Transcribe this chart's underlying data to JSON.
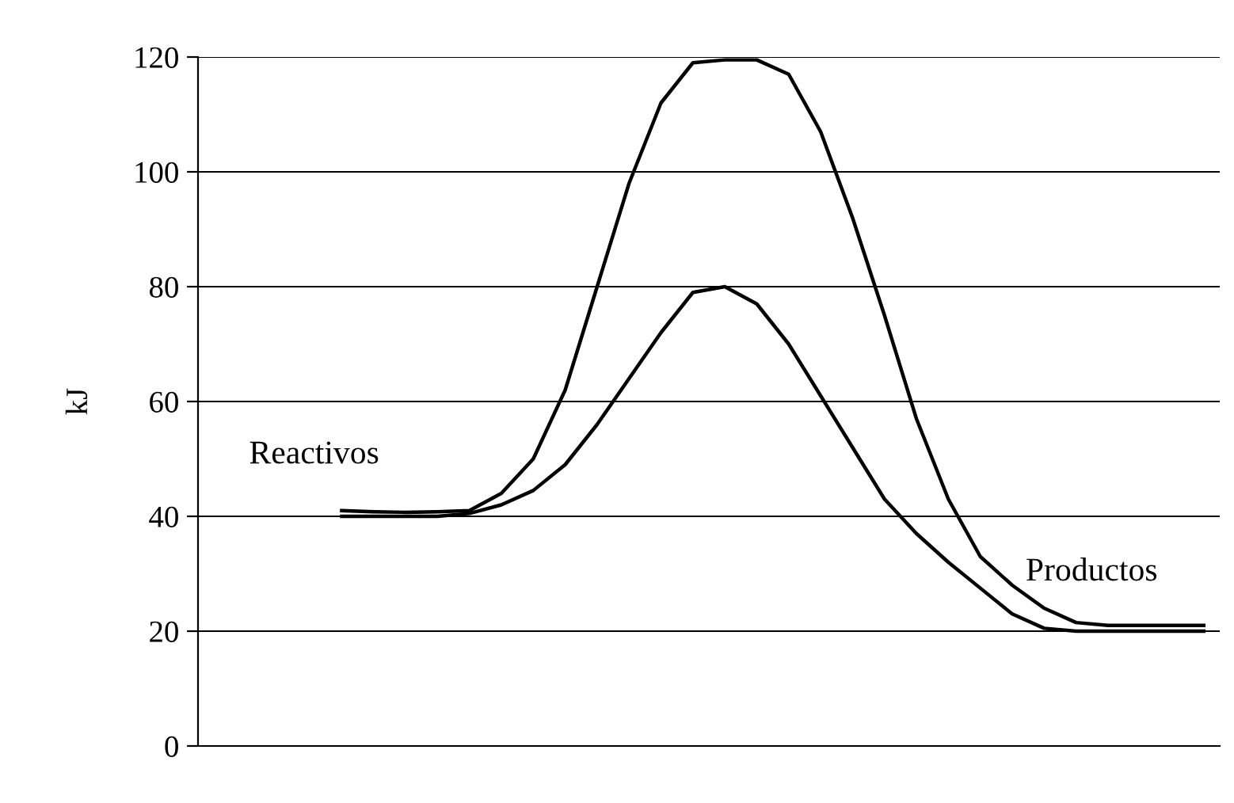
{
  "chart_data": {
    "type": "line",
    "ylabel": "kJ",
    "ylim": [
      0,
      120
    ],
    "yticks": [
      0,
      20,
      40,
      60,
      80,
      100,
      120
    ],
    "grid": "y",
    "tick_labels": "y",
    "marker": "none",
    "line_style": "solid",
    "categories": [
      null,
      null,
      null,
      null,
      null,
      null,
      null,
      null,
      null,
      null,
      null,
      null,
      null,
      null,
      null,
      null,
      null,
      null,
      null,
      null,
      null,
      null,
      null,
      null,
      null,
      null,
      null,
      null,
      null,
      null,
      null,
      null
    ],
    "series": [
      {
        "color": "#000000",
        "values": [
          null,
          null,
          null,
          null,
          41,
          40.8,
          40.7,
          40.8,
          41,
          44,
          50,
          62,
          80,
          98,
          112,
          119,
          119.5,
          119.5,
          117,
          107,
          92,
          75,
          57,
          43,
          33,
          28,
          24,
          21.5,
          21,
          21,
          21,
          21
        ]
      },
      {
        "color": "#000000",
        "values": [
          null,
          null,
          null,
          null,
          40,
          40,
          40,
          40,
          40.5,
          42,
          44.5,
          49,
          56,
          64,
          72,
          79,
          80,
          77,
          70,
          61,
          52,
          43,
          37,
          32,
          27.5,
          23,
          20.5,
          20,
          20,
          20,
          20,
          20
        ]
      }
    ],
    "annotations": [
      "Reactivos",
      "Productos"
    ]
  }
}
